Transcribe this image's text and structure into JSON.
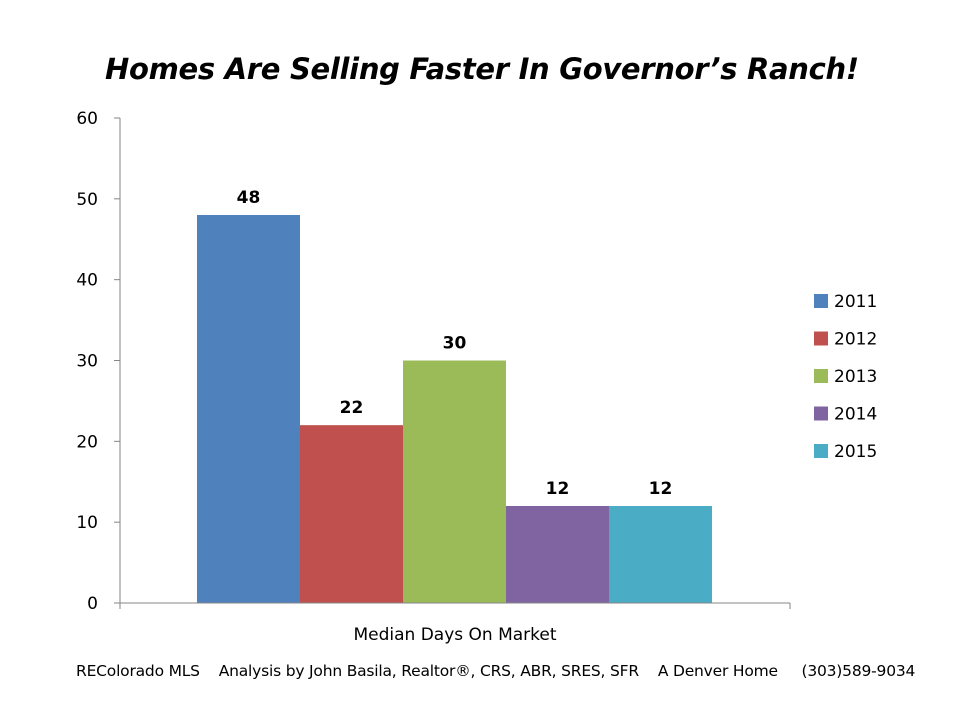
{
  "chart_data": {
    "type": "bar",
    "title": "Homes Are Selling Faster In Governor’s Ranch!",
    "categories": [
      "Median Days On Market"
    ],
    "series": [
      {
        "name": "2011",
        "values": [
          48
        ],
        "color": "#4F81BD"
      },
      {
        "name": "2012",
        "values": [
          22
        ],
        "color": "#C0504D"
      },
      {
        "name": "2013",
        "values": [
          30
        ],
        "color": "#9BBB59"
      },
      {
        "name": "2014",
        "values": [
          12
        ],
        "color": "#8064A2"
      },
      {
        "name": "2015",
        "values": [
          12
        ],
        "color": "#4BACC6"
      }
    ],
    "xlabel": "",
    "ylabel": "",
    "ylim": [
      0,
      60
    ],
    "yticks": [
      0,
      10,
      20,
      30,
      40,
      50,
      60
    ],
    "grid": false,
    "legend_position": "right",
    "data_labels": true
  },
  "footer": {
    "text": "REColorado MLS    Analysis by John Basila, Realtor®, CRS, ABR, SRES, SFR    A Denver Home     (303)589-9034"
  }
}
